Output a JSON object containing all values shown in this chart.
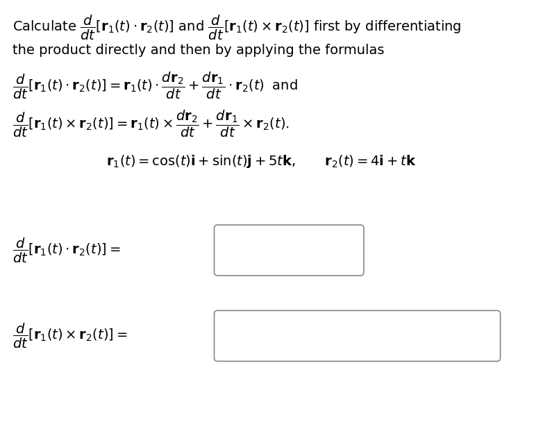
{
  "background_color": "#ffffff",
  "fig_width": 7.95,
  "fig_height": 6.41,
  "text_color": "#000000",
  "line1": "Calculate $\\dfrac{d}{dt}[\\mathbf{r}_1(t) \\cdot \\mathbf{r}_2(t)]$ and $\\dfrac{d}{dt}[\\mathbf{r}_1(t) \\times \\mathbf{r}_2(t)]$ first by differentiating",
  "line2": "the product directly and then by applying the formulas",
  "formula1": "$\\dfrac{d}{dt}[\\mathbf{r}_1(t) \\cdot \\mathbf{r}_2(t)] = \\mathbf{r}_1(t) \\cdot \\dfrac{d\\mathbf{r}_2}{dt} + \\dfrac{d\\mathbf{r}_1}{dt} \\cdot \\mathbf{r}_2(t)\\;$ and",
  "formula2": "$\\dfrac{d}{dt}[\\mathbf{r}_1(t) \\times \\mathbf{r}_2(t)] = \\mathbf{r}_1(t) \\times \\dfrac{d\\mathbf{r}_2}{dt} + \\dfrac{d\\mathbf{r}_1}{dt} \\times \\mathbf{r}_2(t).$",
  "given": "$\\mathbf{r}_1(t) = \\cos(t)\\mathbf{i} + \\sin(t)\\mathbf{j} + 5t\\mathbf{k}, \\qquad \\mathbf{r}_2(t) = 4\\mathbf{i} + t\\mathbf{k}$",
  "ans1_label": "$\\dfrac{d}{dt}[\\mathbf{r}_1(t) \\cdot \\mathbf{r}_2(t)] = $",
  "ans2_label": "$\\dfrac{d}{dt}[\\mathbf{r}_1(t) \\times \\mathbf{r}_2(t)] = $",
  "fontsize": 14
}
